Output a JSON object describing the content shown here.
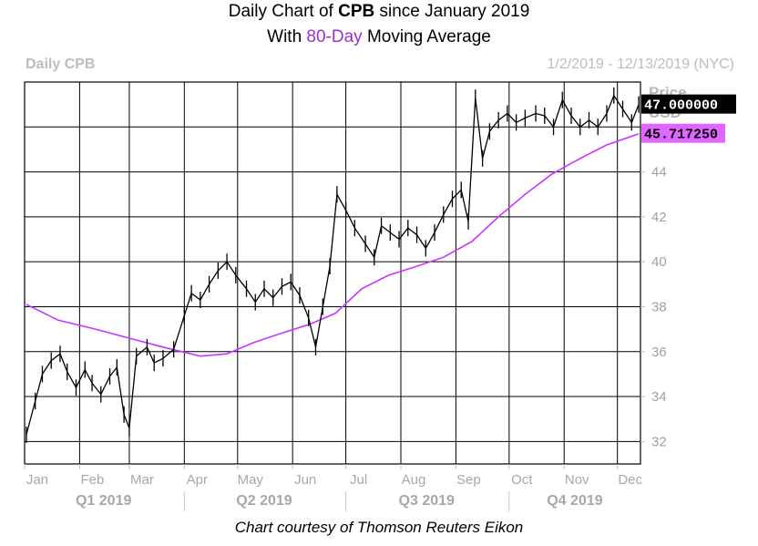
{
  "title": {
    "line1_prefix": "Daily Chart of ",
    "ticker": "CPB",
    "line1_suffix": " since January 2019",
    "line2_prefix": "With ",
    "line2_highlight": "80-Day",
    "line2_suffix": " Moving Average"
  },
  "corner_left": "Daily CPB",
  "corner_right": "1/2/2019 - 12/13/2019 (NYC)",
  "caption": "Chart courtesy of Thomson Reuters Eikon",
  "colors": {
    "price": "#000000",
    "ma": "#cc33ff",
    "grid": "#000000",
    "ma_badge": "#e066ff"
  },
  "chart_data": {
    "type": "line",
    "y_axis_title": [
      "Price",
      "USD"
    ],
    "yticks": [
      32,
      34,
      36,
      38,
      40,
      42,
      44
    ],
    "ylim": [
      31,
      48
    ],
    "x_range": [
      "2019-01-01",
      "2019-12-14"
    ],
    "months": [
      {
        "label": "Jan",
        "date": "2019-01-01"
      },
      {
        "label": "Feb",
        "date": "2019-02-01"
      },
      {
        "label": "Mar",
        "date": "2019-03-01"
      },
      {
        "label": "Apr",
        "date": "2019-04-01"
      },
      {
        "label": "May",
        "date": "2019-05-01"
      },
      {
        "label": "Jun",
        "date": "2019-06-01"
      },
      {
        "label": "Jul",
        "date": "2019-07-01"
      },
      {
        "label": "Aug",
        "date": "2019-08-01"
      },
      {
        "label": "Sep",
        "date": "2019-09-01"
      },
      {
        "label": "Oct",
        "date": "2019-10-01"
      },
      {
        "label": "Nov",
        "date": "2019-11-01"
      },
      {
        "label": "Dec",
        "date": "2019-12-01"
      }
    ],
    "quarters": [
      {
        "label": "Q1 2019",
        "start": "2019-01-01",
        "end": "2019-03-31"
      },
      {
        "label": "Q2 2019",
        "start": "2019-04-01",
        "end": "2019-06-30"
      },
      {
        "label": "Q3 2019",
        "start": "2019-07-01",
        "end": "2019-09-30"
      },
      {
        "label": "Q4 2019",
        "start": "2019-10-01",
        "end": "2019-12-14"
      }
    ],
    "price_badge": "47.000000",
    "ma_badge": "45.717250",
    "series": [
      {
        "name": "CPB",
        "points": [
          [
            "2019-01-02",
            32.3
          ],
          [
            "2019-01-07",
            33.8
          ],
          [
            "2019-01-11",
            35.0
          ],
          [
            "2019-01-16",
            35.6
          ],
          [
            "2019-01-21",
            35.9
          ],
          [
            "2019-01-25",
            35.1
          ],
          [
            "2019-01-30",
            34.4
          ],
          [
            "2019-02-04",
            35.2
          ],
          [
            "2019-02-08",
            34.6
          ],
          [
            "2019-02-13",
            34.1
          ],
          [
            "2019-02-18",
            34.9
          ],
          [
            "2019-02-22",
            35.3
          ],
          [
            "2019-02-26",
            33.2
          ],
          [
            "2019-03-01",
            32.6
          ],
          [
            "2019-03-05",
            35.8
          ],
          [
            "2019-03-11",
            36.2
          ],
          [
            "2019-03-15",
            35.5
          ],
          [
            "2019-03-20",
            35.7
          ],
          [
            "2019-03-26",
            36.1
          ],
          [
            "2019-04-01",
            37.6
          ],
          [
            "2019-04-05",
            38.6
          ],
          [
            "2019-04-10",
            38.3
          ],
          [
            "2019-04-15",
            39.0
          ],
          [
            "2019-04-20",
            39.6
          ],
          [
            "2019-04-25",
            40.0
          ],
          [
            "2019-04-30",
            39.4
          ],
          [
            "2019-05-06",
            38.8
          ],
          [
            "2019-05-11",
            38.2
          ],
          [
            "2019-05-16",
            38.8
          ],
          [
            "2019-05-21",
            38.4
          ],
          [
            "2019-05-26",
            38.9
          ],
          [
            "2019-05-31",
            39.1
          ],
          [
            "2019-06-05",
            38.5
          ],
          [
            "2019-06-10",
            37.5
          ],
          [
            "2019-06-14",
            36.2
          ],
          [
            "2019-06-18",
            38.0
          ],
          [
            "2019-06-22",
            39.8
          ],
          [
            "2019-06-26",
            43.0
          ],
          [
            "2019-07-01",
            42.3
          ],
          [
            "2019-07-06",
            41.5
          ],
          [
            "2019-07-12",
            40.8
          ],
          [
            "2019-07-17",
            40.2
          ],
          [
            "2019-07-21",
            41.6
          ],
          [
            "2019-07-26",
            41.3
          ],
          [
            "2019-07-31",
            41.0
          ],
          [
            "2019-08-05",
            41.5
          ],
          [
            "2019-08-10",
            41.2
          ],
          [
            "2019-08-15",
            40.6
          ],
          [
            "2019-08-20",
            41.3
          ],
          [
            "2019-08-25",
            42.1
          ],
          [
            "2019-08-30",
            42.8
          ],
          [
            "2019-09-04",
            43.2
          ],
          [
            "2019-09-08",
            41.8
          ],
          [
            "2019-09-12",
            47.3
          ],
          [
            "2019-09-16",
            44.6
          ],
          [
            "2019-09-20",
            45.8
          ],
          [
            "2019-09-25",
            46.3
          ],
          [
            "2019-09-30",
            46.6
          ],
          [
            "2019-10-05",
            46.2
          ],
          [
            "2019-10-10",
            46.4
          ],
          [
            "2019-10-16",
            46.6
          ],
          [
            "2019-10-21",
            46.5
          ],
          [
            "2019-10-26",
            46.0
          ],
          [
            "2019-10-31",
            47.2
          ],
          [
            "2019-11-05",
            46.5
          ],
          [
            "2019-11-10",
            46.0
          ],
          [
            "2019-11-15",
            46.3
          ],
          [
            "2019-11-20",
            46.0
          ],
          [
            "2019-11-25",
            46.6
          ],
          [
            "2019-11-29",
            47.4
          ],
          [
            "2019-12-04",
            46.8
          ],
          [
            "2019-12-09",
            46.2
          ],
          [
            "2019-12-13",
            47.0
          ]
        ]
      },
      {
        "name": "80-Day Moving Average",
        "points": [
          [
            "2019-01-02",
            38.1
          ],
          [
            "2019-01-20",
            37.4
          ],
          [
            "2019-02-10",
            37.0
          ],
          [
            "2019-03-01",
            36.6
          ],
          [
            "2019-03-20",
            36.2
          ],
          [
            "2019-04-10",
            35.8
          ],
          [
            "2019-04-25",
            35.9
          ],
          [
            "2019-05-10",
            36.4
          ],
          [
            "2019-05-25",
            36.8
          ],
          [
            "2019-06-10",
            37.2
          ],
          [
            "2019-06-25",
            37.7
          ],
          [
            "2019-07-10",
            38.8
          ],
          [
            "2019-07-25",
            39.4
          ],
          [
            "2019-08-10",
            39.8
          ],
          [
            "2019-08-25",
            40.2
          ],
          [
            "2019-09-10",
            40.9
          ],
          [
            "2019-09-25",
            42.0
          ],
          [
            "2019-10-10",
            43.0
          ],
          [
            "2019-10-25",
            43.9
          ],
          [
            "2019-11-10",
            44.6
          ],
          [
            "2019-11-25",
            45.2
          ],
          [
            "2019-12-13",
            45.7
          ]
        ]
      }
    ]
  }
}
